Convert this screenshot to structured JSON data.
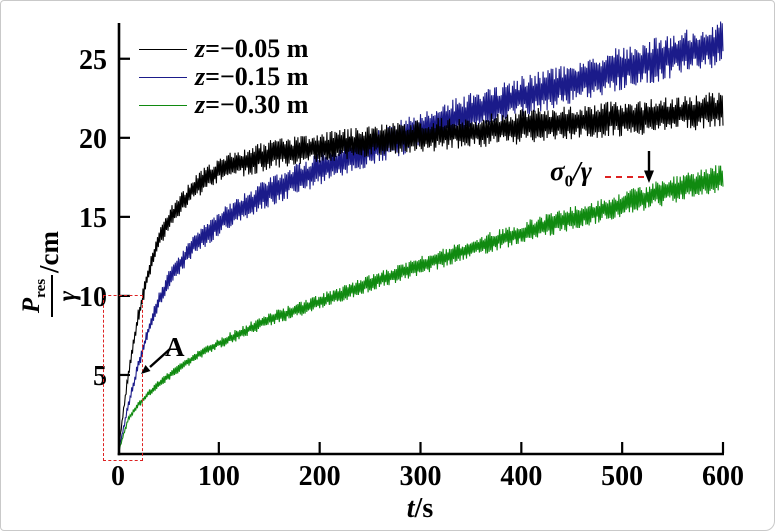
{
  "chart_data": {
    "type": "line",
    "title": "",
    "xlabel": {
      "variable": "t",
      "unit": "/s"
    },
    "ylabel": {
      "numerator_base": "P",
      "numerator_sub": "res",
      "denominator": "γ",
      "unit": "/cm"
    },
    "xlim": [
      0,
      600
    ],
    "ylim": [
      0,
      27.2
    ],
    "x_ticks": [
      0,
      100,
      200,
      300,
      400,
      500,
      600
    ],
    "y_ticks": [
      5,
      10,
      15,
      20,
      25
    ],
    "grid": false,
    "legend_position": "top-left-inside",
    "sample_t": [
      0,
      10,
      20,
      30,
      40,
      50,
      75,
      100,
      150,
      200,
      250,
      300,
      350,
      400,
      450,
      500,
      550,
      600
    ],
    "series": [
      {
        "name": "z=-0.05 m",
        "label_var": "z",
        "label_rest": "=−0.05 m",
        "color": "#000000",
        "values": [
          0,
          5.0,
          8.7,
          11.4,
          13.4,
          14.8,
          16.8,
          18.0,
          18.9,
          19.4,
          19.8,
          20.1,
          20.4,
          20.7,
          21.0,
          21.2,
          21.5,
          21.8
        ],
        "noise_amplitude": [
          0.05,
          0.3,
          0.45,
          0.55,
          0.6,
          0.65,
          0.75,
          0.85,
          0.95,
          1.0,
          1.0,
          1.05,
          1.05,
          1.1,
          1.1,
          1.15,
          1.15,
          1.2
        ]
      },
      {
        "name": "z=-0.15 m",
        "label_var": "z",
        "label_rest": "=−0.15 m",
        "color": "#1b1b8a",
        "values": [
          0,
          3.0,
          5.6,
          7.8,
          9.6,
          11.0,
          13.2,
          14.6,
          16.6,
          18.0,
          19.3,
          20.5,
          21.6,
          22.6,
          23.5,
          24.4,
          25.2,
          26.0
        ],
        "noise_amplitude": [
          0.05,
          0.25,
          0.35,
          0.45,
          0.5,
          0.55,
          0.7,
          0.8,
          0.95,
          1.05,
          1.1,
          1.2,
          1.25,
          1.3,
          1.35,
          1.4,
          1.45,
          1.4
        ]
      },
      {
        "name": "z=-0.30 m",
        "label_var": "z",
        "label_rest": "=−0.30 m",
        "color": "#108a10",
        "values": [
          0,
          2.2,
          3.1,
          3.8,
          4.4,
          4.9,
          6.1,
          7.0,
          8.5,
          9.6,
          10.8,
          11.9,
          13.0,
          14.0,
          14.9,
          15.8,
          16.7,
          17.5
        ],
        "noise_amplitude": [
          0.03,
          0.15,
          0.2,
          0.22,
          0.25,
          0.27,
          0.3,
          0.35,
          0.45,
          0.5,
          0.55,
          0.6,
          0.65,
          0.7,
          0.75,
          0.8,
          0.85,
          0.9
        ]
      }
    ],
    "annotations": {
      "a_label": "A",
      "sigma_base": "σ",
      "sigma_sub": "0",
      "sigma_rest": "/γ",
      "accent_red": "#dd2222"
    }
  }
}
